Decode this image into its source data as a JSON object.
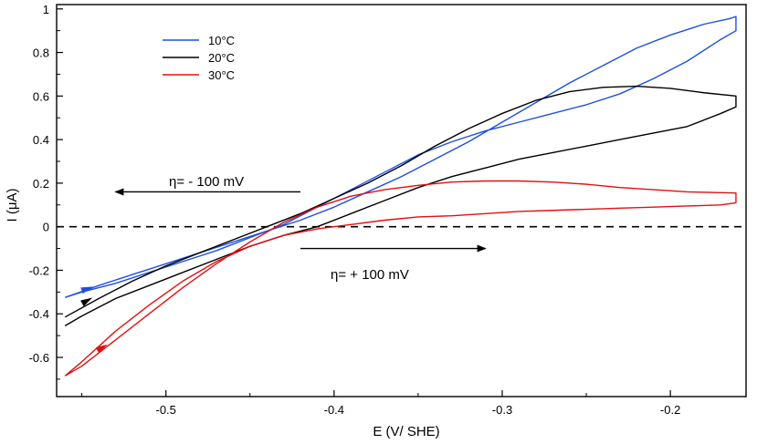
{
  "chart_data": {
    "type": "line",
    "title": "",
    "xlabel": "E (V/ SHE)",
    "ylabel": "I (μA)",
    "xlim": [
      -0.565,
      -0.155
    ],
    "ylim": [
      -0.78,
      1.02
    ],
    "xticks": [
      -0.5,
      -0.4,
      -0.3,
      -0.2
    ],
    "xtick_labels": [
      "-0.5",
      "-0.4",
      "-0.3",
      "-0.2"
    ],
    "yticks": [
      -0.6,
      -0.4,
      -0.2,
      0,
      0.2,
      0.4,
      0.6,
      0.8,
      1.0
    ],
    "ytick_labels": [
      "-0.6",
      "-0.4",
      "-0.2",
      "0",
      "0.2",
      "0.4",
      "0.6",
      "0.8",
      "1"
    ],
    "grid": false,
    "legend_position": "top-left",
    "legend": [
      "10°C",
      "20°C",
      "30°C"
    ],
    "reference_line": {
      "y": 0,
      "style": "dashed",
      "color": "#000000"
    },
    "series": [
      {
        "name": "10°C",
        "color": "#1f4fe0",
        "forward": [
          [
            -0.56,
            -0.325
          ],
          [
            -0.54,
            -0.27
          ],
          [
            -0.52,
            -0.22
          ],
          [
            -0.5,
            -0.17
          ],
          [
            -0.48,
            -0.12
          ],
          [
            -0.46,
            -0.07
          ],
          [
            -0.44,
            -0.02
          ],
          [
            -0.42,
            0.03
          ],
          [
            -0.4,
            0.09
          ],
          [
            -0.38,
            0.16
          ],
          [
            -0.36,
            0.23
          ],
          [
            -0.34,
            0.31
          ],
          [
            -0.32,
            0.39
          ],
          [
            -0.3,
            0.48
          ],
          [
            -0.28,
            0.57
          ],
          [
            -0.26,
            0.66
          ],
          [
            -0.24,
            0.74
          ],
          [
            -0.22,
            0.82
          ],
          [
            -0.2,
            0.88
          ],
          [
            -0.18,
            0.93
          ],
          [
            -0.165,
            0.955
          ],
          [
            -0.161,
            0.965
          ]
        ],
        "reverse": [
          [
            -0.161,
            0.965
          ],
          [
            -0.161,
            0.9
          ],
          [
            -0.17,
            0.86
          ],
          [
            -0.19,
            0.76
          ],
          [
            -0.21,
            0.68
          ],
          [
            -0.23,
            0.61
          ],
          [
            -0.25,
            0.56
          ],
          [
            -0.27,
            0.52
          ],
          [
            -0.29,
            0.48
          ],
          [
            -0.31,
            0.44
          ],
          [
            -0.33,
            0.39
          ],
          [
            -0.35,
            0.33
          ],
          [
            -0.37,
            0.25
          ],
          [
            -0.39,
            0.17
          ],
          [
            -0.41,
            0.09
          ],
          [
            -0.43,
            0.01
          ],
          [
            -0.45,
            -0.05
          ],
          [
            -0.47,
            -0.11
          ],
          [
            -0.49,
            -0.16
          ],
          [
            -0.51,
            -0.21
          ],
          [
            -0.53,
            -0.26
          ],
          [
            -0.55,
            -0.3
          ],
          [
            -0.56,
            -0.325
          ]
        ],
        "arrow_at": [
          -0.547,
          -0.285
        ]
      },
      {
        "name": "20°C",
        "color": "#000000",
        "forward": [
          [
            -0.56,
            -0.415
          ],
          [
            -0.54,
            -0.33
          ],
          [
            -0.52,
            -0.25
          ],
          [
            -0.5,
            -0.18
          ],
          [
            -0.48,
            -0.12
          ],
          [
            -0.46,
            -0.06
          ],
          [
            -0.44,
            0.0
          ],
          [
            -0.42,
            0.06
          ],
          [
            -0.4,
            0.13
          ],
          [
            -0.38,
            0.2
          ],
          [
            -0.36,
            0.28
          ],
          [
            -0.34,
            0.37
          ],
          [
            -0.32,
            0.45
          ],
          [
            -0.3,
            0.52
          ],
          [
            -0.28,
            0.58
          ],
          [
            -0.26,
            0.62
          ],
          [
            -0.24,
            0.64
          ],
          [
            -0.22,
            0.645
          ],
          [
            -0.2,
            0.635
          ],
          [
            -0.18,
            0.615
          ],
          [
            -0.161,
            0.6
          ]
        ],
        "reverse": [
          [
            -0.161,
            0.6
          ],
          [
            -0.161,
            0.55
          ],
          [
            -0.17,
            0.52
          ],
          [
            -0.19,
            0.46
          ],
          [
            -0.21,
            0.43
          ],
          [
            -0.23,
            0.4
          ],
          [
            -0.25,
            0.37
          ],
          [
            -0.27,
            0.34
          ],
          [
            -0.29,
            0.31
          ],
          [
            -0.31,
            0.27
          ],
          [
            -0.33,
            0.23
          ],
          [
            -0.35,
            0.18
          ],
          [
            -0.37,
            0.12
          ],
          [
            -0.39,
            0.06
          ],
          [
            -0.41,
            0.0
          ],
          [
            -0.43,
            -0.04
          ],
          [
            -0.45,
            -0.09
          ],
          [
            -0.47,
            -0.15
          ],
          [
            -0.49,
            -0.21
          ],
          [
            -0.51,
            -0.27
          ],
          [
            -0.53,
            -0.33
          ],
          [
            -0.55,
            -0.41
          ],
          [
            -0.56,
            -0.455
          ]
        ],
        "arrow_at": [
          -0.547,
          -0.34
        ]
      },
      {
        "name": "30°C",
        "color": "#e01010",
        "forward": [
          [
            -0.56,
            -0.685
          ],
          [
            -0.55,
            -0.64
          ],
          [
            -0.53,
            -0.52
          ],
          [
            -0.51,
            -0.4
          ],
          [
            -0.49,
            -0.28
          ],
          [
            -0.47,
            -0.17
          ],
          [
            -0.45,
            -0.07
          ],
          [
            -0.43,
            0.02
          ],
          [
            -0.41,
            0.09
          ],
          [
            -0.39,
            0.14
          ],
          [
            -0.37,
            0.17
          ],
          [
            -0.35,
            0.19
          ],
          [
            -0.33,
            0.205
          ],
          [
            -0.31,
            0.21
          ],
          [
            -0.29,
            0.21
          ],
          [
            -0.27,
            0.205
          ],
          [
            -0.25,
            0.195
          ],
          [
            -0.23,
            0.18
          ],
          [
            -0.21,
            0.17
          ],
          [
            -0.19,
            0.16
          ],
          [
            -0.161,
            0.155
          ]
        ],
        "reverse": [
          [
            -0.161,
            0.155
          ],
          [
            -0.161,
            0.11
          ],
          [
            -0.17,
            0.1
          ],
          [
            -0.19,
            0.095
          ],
          [
            -0.21,
            0.09
          ],
          [
            -0.23,
            0.085
          ],
          [
            -0.25,
            0.08
          ],
          [
            -0.27,
            0.075
          ],
          [
            -0.29,
            0.07
          ],
          [
            -0.31,
            0.06
          ],
          [
            -0.33,
            0.05
          ],
          [
            -0.35,
            0.045
          ],
          [
            -0.37,
            0.03
          ],
          [
            -0.39,
            0.01
          ],
          [
            -0.41,
            -0.01
          ],
          [
            -0.43,
            -0.04
          ],
          [
            -0.45,
            -0.09
          ],
          [
            -0.47,
            -0.16
          ],
          [
            -0.49,
            -0.25
          ],
          [
            -0.51,
            -0.36
          ],
          [
            -0.53,
            -0.48
          ],
          [
            -0.55,
            -0.62
          ],
          [
            -0.56,
            -0.685
          ]
        ],
        "arrow_at": [
          -0.538,
          -0.555
        ]
      }
    ],
    "annotations": [
      {
        "text": "η= - 100 mV",
        "arrow_from": [
          -0.42,
          0.16
        ],
        "arrow_to": [
          -0.53,
          0.16
        ]
      },
      {
        "text": "η= + 100 mV",
        "arrow_from": [
          -0.42,
          -0.1
        ],
        "arrow_to": [
          -0.31,
          -0.1
        ]
      }
    ]
  }
}
